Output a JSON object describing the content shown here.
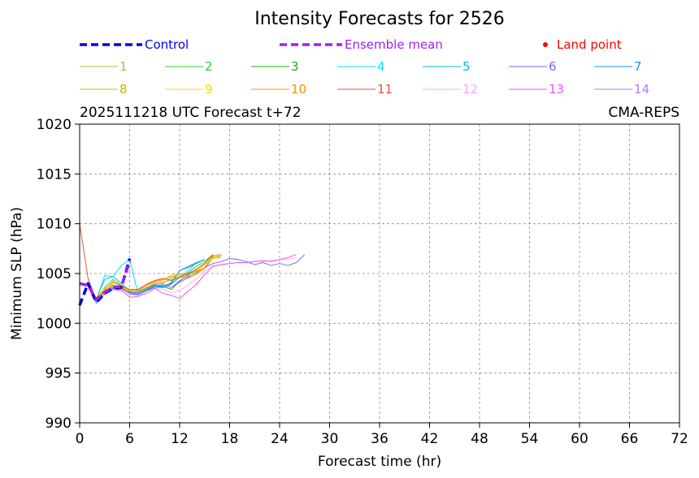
{
  "chart_data": {
    "type": "line",
    "title": "Intensity Forecasts for 2526",
    "subtitle_left": "2025111218 UTC Forecast t+72",
    "subtitle_right": "CMA-REPS",
    "xlabel": "Forecast time (hr)",
    "ylabel": "Minimum SLP (hPa)",
    "xlim": [
      0,
      72
    ],
    "ylim": [
      990,
      1020
    ],
    "xticks": [
      0,
      6,
      12,
      18,
      24,
      30,
      36,
      42,
      48,
      54,
      60,
      66,
      72
    ],
    "yticks": [
      990,
      995,
      1000,
      1005,
      1010,
      1015,
      1020
    ],
    "grid": true,
    "legend_top": [
      {
        "label": "Control",
        "color": "#0000ee",
        "style": "dashed"
      },
      {
        "label": "Ensemble mean",
        "color": "#a020f0",
        "style": "dashed"
      },
      {
        "label": "Land point",
        "color": "#ff0000",
        "style": "dot"
      }
    ],
    "series": [
      {
        "name": "Control",
        "color": "#0000ee",
        "style": "dashed",
        "width": 3.5,
        "x": [
          0,
          1,
          2,
          3,
          4,
          5,
          6
        ],
        "y": [
          1001.8,
          1004.0,
          1002.1,
          1003.0,
          1003.5,
          1003.6,
          1006.5
        ]
      },
      {
        "name": "Ensemble mean",
        "color": "#a020f0",
        "style": "dashed",
        "width": 3.5,
        "x": [
          0,
          1,
          2,
          3,
          4,
          5,
          6
        ],
        "y": [
          1004.0,
          1003.8,
          1002.4,
          1003.1,
          1003.6,
          1003.7,
          1006.2
        ]
      },
      {
        "name": "1",
        "color": "#9acd32",
        "x": [
          0,
          1,
          2,
          3,
          4,
          5,
          6,
          7,
          8,
          9,
          10,
          11,
          12,
          13,
          14,
          15,
          16,
          17
        ],
        "y": [
          1004.0,
          1003.8,
          1002.3,
          1003.4,
          1004.1,
          1003.8,
          1003.3,
          1003.0,
          1003.5,
          1004.0,
          1004.0,
          1004.6,
          1004.7,
          1004.5,
          1004.9,
          1005.4,
          1006.6,
          1006.8
        ]
      },
      {
        "name": "2",
        "color": "#32cd32",
        "x": [
          0,
          1,
          2,
          3,
          4,
          5,
          6,
          7,
          8,
          9,
          10,
          11,
          12,
          13,
          14,
          15,
          16
        ],
        "y": [
          1004.0,
          1003.9,
          1002.2,
          1003.6,
          1004.4,
          1003.8,
          1003.1,
          1003.2,
          1003.6,
          1003.9,
          1003.6,
          1003.9,
          1004.6,
          1005.1,
          1005.7,
          1006.2,
          1006.9
        ]
      },
      {
        "name": "3",
        "color": "#22aa22",
        "x": [
          0,
          1,
          2,
          3,
          4,
          5,
          6,
          7,
          8,
          9,
          10,
          11,
          12,
          13,
          14,
          15,
          16
        ],
        "y": [
          1004.0,
          1003.8,
          1002.4,
          1003.2,
          1003.8,
          1003.6,
          1003.0,
          1002.9,
          1003.4,
          1003.8,
          1003.7,
          1003.4,
          1004.2,
          1004.9,
          1005.4,
          1006.0,
          1006.9
        ]
      },
      {
        "name": "4",
        "color": "#00e5ee",
        "x": [
          0,
          1,
          2,
          3,
          4,
          5,
          6,
          7,
          8,
          9,
          10,
          11,
          12,
          13,
          14
        ],
        "y": [
          1004.0,
          1003.9,
          1002.3,
          1004.8,
          1004.7,
          1005.8,
          1006.4,
          1003.0,
          1003.2,
          1003.6,
          1003.6,
          1004.0,
          1004.6,
          1005.3,
          1006.1
        ]
      },
      {
        "name": "5",
        "color": "#00bcd4",
        "x": [
          0,
          1,
          2,
          3,
          4,
          5,
          6,
          7,
          8,
          9,
          10,
          11,
          12,
          13,
          14,
          15
        ],
        "y": [
          1004.0,
          1003.8,
          1002.5,
          1004.4,
          1004.7,
          1004.0,
          1003.2,
          1003.0,
          1003.3,
          1003.7,
          1003.7,
          1004.1,
          1005.3,
          1005.7,
          1006.1,
          1006.4
        ]
      },
      {
        "name": "6",
        "color": "#7b68ee",
        "x": [
          0,
          1,
          2,
          3,
          4,
          5,
          6,
          7,
          8,
          9,
          10,
          11,
          12,
          13,
          14,
          15,
          16,
          17,
          18,
          19,
          20,
          21,
          22,
          23,
          24,
          25,
          26,
          27
        ],
        "y": [
          1004.0,
          1003.8,
          1002.3,
          1003.1,
          1003.6,
          1003.5,
          1003.0,
          1002.8,
          1003.2,
          1003.7,
          1003.9,
          1003.6,
          1004.1,
          1004.6,
          1005.1,
          1005.6,
          1006.0,
          1006.2,
          1006.5,
          1006.4,
          1006.2,
          1005.9,
          1006.1,
          1005.8,
          1006.0,
          1005.8,
          1006.1,
          1006.9
        ]
      },
      {
        "name": "7",
        "color": "#1e90ff",
        "x": [
          0,
          1,
          2,
          3,
          4,
          5,
          6,
          7,
          8,
          9,
          10,
          11,
          12,
          13,
          14,
          15
        ],
        "y": [
          1004.0,
          1003.9,
          1002.0,
          1003.3,
          1003.5,
          1003.4,
          1003.1,
          1002.9,
          1003.3,
          1003.7,
          1003.6,
          1004.0,
          1005.3,
          1005.6,
          1006.0,
          1006.4
        ]
      },
      {
        "name": "8",
        "color": "#c8b400",
        "x": [
          0,
          1,
          2,
          3,
          4,
          5,
          6,
          7,
          8,
          9,
          10,
          11,
          12,
          13,
          14,
          15,
          16,
          17
        ],
        "y": [
          1004.0,
          1003.7,
          1002.4,
          1003.1,
          1003.6,
          1003.6,
          1003.2,
          1003.2,
          1003.6,
          1004.0,
          1004.1,
          1004.4,
          1004.6,
          1004.7,
          1005.0,
          1005.6,
          1006.7,
          1006.6
        ]
      },
      {
        "name": "9",
        "color": "#ffd700",
        "x": [
          0,
          1,
          2,
          3,
          4,
          5,
          6,
          7,
          8,
          9,
          10,
          11,
          12,
          13,
          14,
          15,
          16,
          17
        ],
        "y": [
          1004.0,
          1003.8,
          1002.6,
          1003.5,
          1003.9,
          1003.7,
          1003.3,
          1003.4,
          1003.8,
          1004.1,
          1004.3,
          1004.9,
          1005.0,
          1004.8,
          1005.3,
          1005.9,
          1006.5,
          1006.6
        ]
      },
      {
        "name": "10",
        "color": "#ff8c00",
        "x": [
          0,
          1,
          2,
          3,
          4,
          5,
          6,
          7,
          8,
          9,
          10,
          11,
          12,
          13,
          14,
          15,
          16,
          17
        ],
        "y": [
          1004.0,
          1003.9,
          1002.4,
          1003.3,
          1004.2,
          1003.7,
          1003.4,
          1003.3,
          1003.8,
          1004.2,
          1004.4,
          1004.7,
          1004.9,
          1005.0,
          1005.2,
          1005.6,
          1006.8,
          1006.9
        ]
      },
      {
        "name": "11",
        "color": "#e8563a",
        "x": [
          0,
          1,
          2,
          3,
          4,
          5,
          6,
          7,
          8,
          9,
          10,
          11,
          12,
          13,
          14,
          15,
          16
        ],
        "y": [
          1010.0,
          1004.5,
          1002.3,
          1003.2,
          1003.6,
          1003.8,
          1003.4,
          1003.4,
          1003.9,
          1004.3,
          1004.5,
          1004.3,
          1004.6,
          1005.0,
          1005.4,
          1006.0,
          1006.9
        ]
      },
      {
        "name": "12",
        "color": "#ffaaff",
        "x": [
          0,
          1,
          2,
          3,
          4,
          5,
          6,
          7,
          8,
          9,
          10,
          11,
          12,
          13,
          14,
          15,
          16,
          17,
          18,
          19,
          20,
          21,
          22,
          23,
          24,
          25,
          26
        ],
        "y": [
          1004.0,
          1003.8,
          1002.4,
          1003.0,
          1003.4,
          1003.4,
          1002.9,
          1002.8,
          1003.2,
          1003.5,
          1003.4,
          1003.1,
          1003.3,
          1003.8,
          1004.5,
          1005.2,
          1005.8,
          1005.9,
          1006.0,
          1006.1,
          1006.1,
          1006.2,
          1006.2,
          1006.3,
          1006.4,
          1006.4,
          1006.6
        ]
      },
      {
        "name": "13",
        "color": "#ee55ee",
        "x": [
          0,
          1,
          2,
          3,
          4,
          5,
          6,
          7,
          8,
          9,
          10,
          11,
          12,
          13,
          14,
          15,
          16,
          17,
          18,
          19,
          20,
          21,
          22,
          23,
          24,
          25,
          26
        ],
        "y": [
          1004.0,
          1003.9,
          1002.3,
          1002.9,
          1003.4,
          1003.3,
          1002.6,
          1002.7,
          1003.0,
          1003.5,
          1003.0,
          1002.8,
          1002.5,
          1003.2,
          1003.9,
          1004.9,
          1005.7,
          1005.9,
          1006.0,
          1006.1,
          1006.1,
          1006.2,
          1006.3,
          1006.2,
          1006.4,
          1006.6,
          1006.9
        ]
      },
      {
        "name": "14",
        "color": "#b57bee",
        "x": [
          0,
          1,
          2,
          3,
          4,
          5,
          6,
          7,
          8,
          9,
          10,
          11,
          12,
          13,
          14
        ],
        "y": [
          1004.0,
          1003.8,
          1002.2,
          1003.2,
          1003.6,
          1003.5,
          1003.0,
          1003.1,
          1003.5,
          1003.9,
          1003.8,
          1003.6,
          1004.3,
          1004.8,
          1005.5
        ]
      }
    ]
  }
}
